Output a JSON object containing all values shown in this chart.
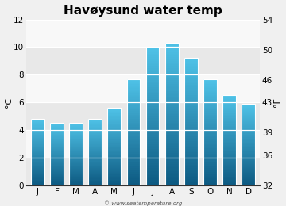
{
  "title": "Havøysund water temp",
  "months": [
    "J",
    "F",
    "M",
    "A",
    "M",
    "J",
    "J",
    "A",
    "S",
    "O",
    "N",
    "D"
  ],
  "values_c": [
    4.8,
    4.5,
    4.5,
    4.8,
    5.6,
    7.7,
    10.0,
    10.3,
    9.2,
    7.7,
    6.5,
    5.9
  ],
  "ylim_c": [
    0,
    12
  ],
  "yticks_c": [
    0,
    2,
    4,
    6,
    8,
    10,
    12
  ],
  "ylim_f": [
    32,
    54
  ],
  "yticks_f": [
    32,
    36,
    39,
    43,
    46,
    50,
    54
  ],
  "ylabel_left": "°C",
  "ylabel_right": "°F",
  "bar_color_top": "#4fc3e8",
  "bar_color_bottom": "#0d5a82",
  "bg_color": "#f0f0f0",
  "plot_bg_color": "#f0f0f0",
  "band_light": "#e8e8e8",
  "band_dark": "#f8f8f8",
  "bar_edge_color": "#ffffff",
  "watermark": "© www.seatemperature.org",
  "title_fontsize": 11,
  "tick_fontsize": 7.5,
  "label_fontsize": 8,
  "watermark_fontsize": 5
}
